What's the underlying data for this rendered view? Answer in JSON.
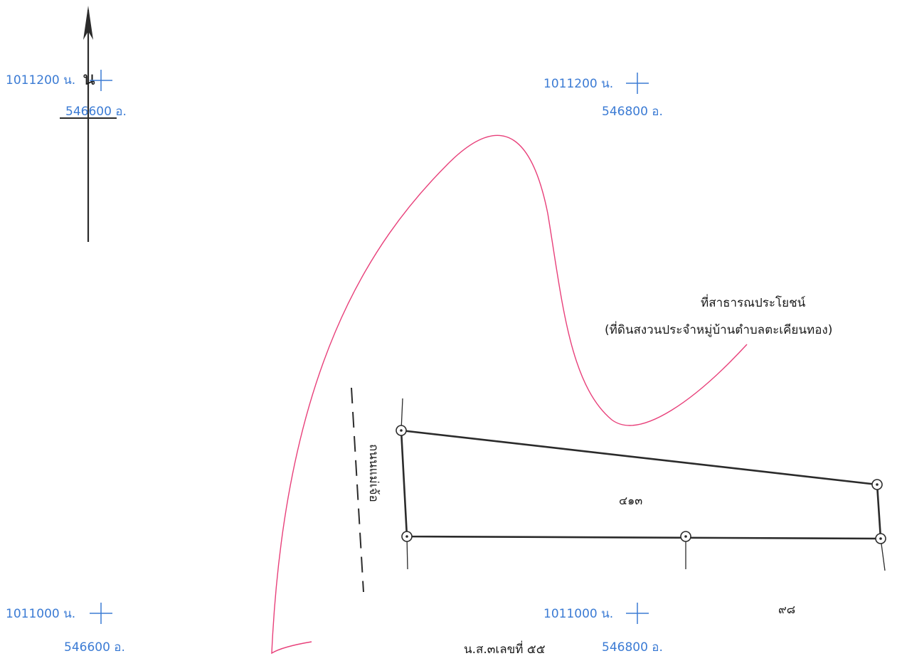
{
  "north": {
    "label": "น"
  },
  "grid": {
    "top_left": {
      "north": "1011200 น.",
      "east": "546600 อ."
    },
    "top_right": {
      "north": "1011200 น.",
      "east": "546800 อ."
    },
    "bottom_left": {
      "north": "1011000 น.",
      "east": "546600 อ."
    },
    "bottom_right": {
      "north": "1011000 น.",
      "east": "546800 อ."
    }
  },
  "public_land": {
    "line1": "ที่สาธารณประโยชน์",
    "line2": "(ที่ดินสงวนประจำหมู่บ้านตำบลตะเคียนทอง)"
  },
  "road_label": "ถนนแม่เจ้อ",
  "parcels": {
    "main": "๔๑๓",
    "south": "๙๘",
    "document": "น.ส.๓เลขที่ ๕๕"
  },
  "colors": {
    "grid": "#3b7bd4",
    "annotation": "#e8407a",
    "ink": "#2b2b2b"
  }
}
